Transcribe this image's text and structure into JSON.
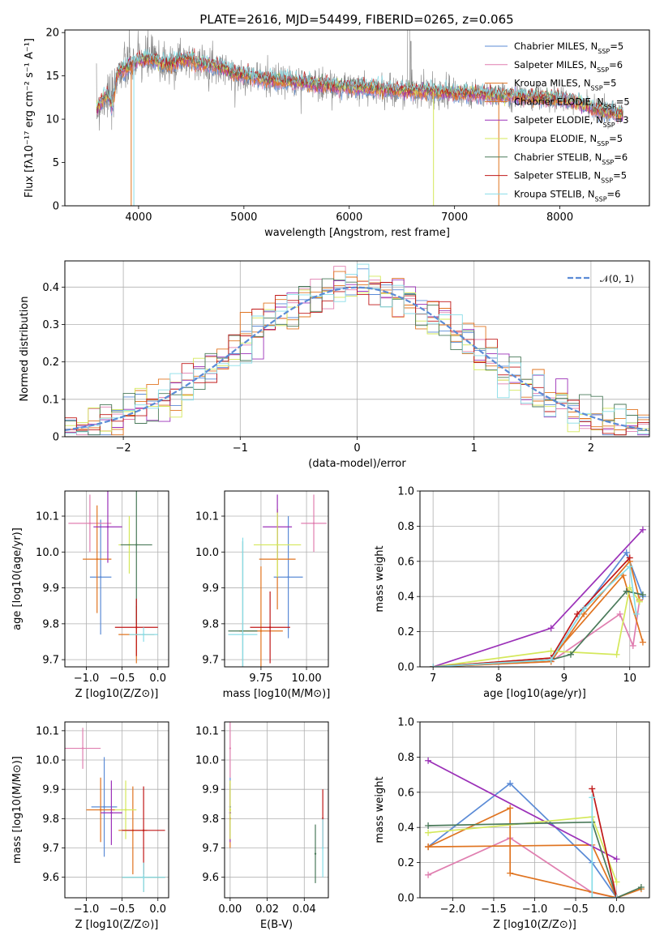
{
  "title": "PLATE=2616, MJD=54499, FIBERID=0265, z=0.065",
  "colors": {
    "chabrier_miles": "#5b8bd6",
    "salpeter_miles": "#e07fb0",
    "kroupa_miles": "#e07420",
    "chabrier_elodie": "#e07420",
    "salpeter_elodie": "#9b30b8",
    "kroupa_elodie": "#d4e85a",
    "chabrier_stelib": "#4a7a5a",
    "salpeter_stelib": "#c01818",
    "kroupa_stelib": "#88dde8",
    "data": "#808080",
    "gauss": "#5b8bd6",
    "grid": "#b0b0b0"
  },
  "chart_data": [
    {
      "id": "spectrum",
      "type": "line",
      "xlabel": "wavelength [Angstrom, rest frame]",
      "ylabel": "Flux [fλ10⁻¹⁷ erg cm⁻² s⁻¹ A⁻¹]",
      "xlim": [
        3300,
        8850
      ],
      "ylim": [
        0,
        20.3
      ],
      "xticks": [
        4000,
        5000,
        6000,
        7000,
        8000
      ],
      "yticks": [
        0,
        5,
        10,
        15,
        20
      ],
      "legend": [
        "Chabrier MILES, N_SSP=5",
        "Salpeter MILES, N_SSP=6",
        "Kroupa MILES, N_SSP=5",
        "Chabrier ELODIE, N_SSP=5",
        "Salpeter ELODIE, N_SSP=3",
        "Kroupa ELODIE, N_SSP=5",
        "Chabrier STELIB, N_SSP=6",
        "Salpeter STELIB, N_SSP=5",
        "Kroupa STELIB, N_SSP=6"
      ],
      "continuum": {
        "x": [
          3600,
          3650,
          3700,
          3750,
          3800,
          3900,
          4000,
          4100,
          4200,
          4300,
          4400,
          4500,
          4600,
          4700,
          4800,
          4900,
          5000,
          5200,
          5400,
          5600,
          5800,
          6000,
          6200,
          6400,
          6600,
          6800,
          7000,
          7200,
          7400,
          7600,
          7800,
          8000,
          8200,
          8400,
          8600
        ],
        "y": [
          11.0,
          12.0,
          13.0,
          11.5,
          15.5,
          16.0,
          16.8,
          17.0,
          16.6,
          16.3,
          16.9,
          16.9,
          16.4,
          16.3,
          16.0,
          15.2,
          15.1,
          14.6,
          14.4,
          14.2,
          13.9,
          13.7,
          13.6,
          13.3,
          13.3,
          13.2,
          13.0,
          12.9,
          12.8,
          12.6,
          12.5,
          12.3,
          11.8,
          10.9,
          10.5
        ]
      }
    },
    {
      "id": "residuals",
      "type": "histogram",
      "xlabel": "(data-model)/error",
      "ylabel": "Normed distribution",
      "xlim": [
        -2.5,
        2.5
      ],
      "ylim": [
        0,
        0.47
      ],
      "xticks": [
        -2,
        -1,
        0,
        1,
        2
      ],
      "yticks": [
        0.0,
        0.1,
        0.2,
        0.3,
        0.4
      ],
      "legend": [
        "𝒩(0, 1)"
      ]
    },
    {
      "id": "age-vs-Z",
      "type": "scatter",
      "xlabel": "Z [log10(Z/Z⊙)]",
      "ylabel": "age  [log10(age/yr)]",
      "xlim": [
        -1.3,
        0.15
      ],
      "ylim": [
        9.68,
        10.17
      ],
      "xticks": [
        -1.0,
        -0.5,
        0.0
      ],
      "yticks": [
        9.7,
        9.8,
        9.9,
        10.0,
        10.1
      ],
      "points": [
        {
          "x": -0.8,
          "y": 9.93,
          "xerr": 0.15,
          "yerr": 0.16
        },
        {
          "x": -0.95,
          "y": 10.08,
          "xerr": 0.3,
          "yerr": 0.08
        },
        {
          "x": -0.85,
          "y": 9.98,
          "xerr": 0.2,
          "yerr": 0.15
        },
        {
          "x": -0.3,
          "y": 9.77,
          "xerr": 0.25,
          "yerr": 0.08
        },
        {
          "x": -0.7,
          "y": 10.07,
          "xerr": 0.2,
          "yerr": 0.1
        },
        {
          "x": -0.4,
          "y": 10.02,
          "xerr": 0.15,
          "yerr": 0.08
        },
        {
          "x": -0.3,
          "y": 10.02,
          "xerr": 0.22,
          "yerr": 0.22
        },
        {
          "x": -0.3,
          "y": 9.79,
          "xerr": 0.3,
          "yerr": 0.08
        },
        {
          "x": -0.2,
          "y": 9.77,
          "xerr": 0.2,
          "yerr": 0.02
        }
      ]
    },
    {
      "id": "age-vs-mass",
      "type": "scatter",
      "xlabel": "mass [log10(M/M⊙)]",
      "ylabel": "",
      "xlim": [
        9.55,
        10.12
      ],
      "ylim": [
        9.68,
        10.17
      ],
      "xticks": [
        9.75,
        10.0
      ],
      "yticks": [
        9.7,
        9.8,
        9.9,
        10.0,
        10.1
      ],
      "points": [
        {
          "x": 9.9,
          "y": 9.93,
          "xerr": 0.08,
          "yerr": 0.17
        },
        {
          "x": 10.04,
          "y": 10.08,
          "xerr": 0.07,
          "yerr": 0.08
        },
        {
          "x": 9.84,
          "y": 9.98,
          "xerr": 0.1,
          "yerr": 0.14
        },
        {
          "x": 9.75,
          "y": 9.78,
          "xerr": 0.12,
          "yerr": 0.18
        },
        {
          "x": 9.84,
          "y": 10.07,
          "xerr": 0.08,
          "yerr": 0.09
        },
        {
          "x": 9.84,
          "y": 10.02,
          "xerr": 0.13,
          "yerr": 0.09
        },
        {
          "x": 9.65,
          "y": 9.78,
          "xerr": 0.08,
          "yerr": 0.25
        },
        {
          "x": 9.8,
          "y": 9.79,
          "xerr": 0.11,
          "yerr": 0.1
        },
        {
          "x": 9.65,
          "y": 9.77,
          "xerr": 0.08,
          "yerr": 0.27
        }
      ]
    },
    {
      "id": "mass-weight-vs-age",
      "type": "line",
      "xlabel": "age  [log10(age/yr)]",
      "ylabel": "mass weight",
      "xlim": [
        6.8,
        10.3
      ],
      "ylim": [
        0,
        1
      ],
      "xticks": [
        7,
        8,
        9,
        10
      ],
      "yticks": [
        0.0,
        0.2,
        0.4,
        0.6,
        0.8,
        1.0
      ],
      "series": [
        {
          "x": [
            7.0,
            8.8,
            9.3,
            9.95,
            10.2
          ],
          "y": [
            0.0,
            0.04,
            0.33,
            0.65,
            0.4
          ]
        },
        {
          "x": [
            7.0,
            8.8,
            9.85,
            10.05,
            10.15
          ],
          "y": [
            0.0,
            0.03,
            0.3,
            0.12,
            0.38
          ]
        },
        {
          "x": [
            7.0,
            8.8,
            9.9,
            10.2
          ],
          "y": [
            0.0,
            0.05,
            0.52,
            0.14
          ]
        },
        {
          "x": [
            7.0,
            8.8,
            9.3,
            10.0,
            10.15
          ],
          "y": [
            0.0,
            0.03,
            0.3,
            0.6,
            0.38
          ]
        },
        {
          "x": [
            7.0,
            8.8,
            10.2
          ],
          "y": [
            0.0,
            0.22,
            0.78
          ]
        },
        {
          "x": [
            7.0,
            8.8,
            9.8,
            10.0,
            10.15
          ],
          "y": [
            0.0,
            0.09,
            0.07,
            0.45,
            0.37
          ]
        },
        {
          "x": [
            7.0,
            8.8,
            9.1,
            9.95,
            10.2
          ],
          "y": [
            0.0,
            0.04,
            0.07,
            0.43,
            0.41
          ]
        },
        {
          "x": [
            7.0,
            8.8,
            9.2,
            10.0
          ],
          "y": [
            0.0,
            0.05,
            0.3,
            0.62
          ]
        },
        {
          "x": [
            7.0,
            8.8,
            9.3,
            10.0,
            10.1
          ],
          "y": [
            0.0,
            0.04,
            0.33,
            0.57,
            0.3
          ]
        }
      ]
    },
    {
      "id": "mass-vs-Z",
      "type": "scatter",
      "xlabel": "Z [log10(Z/Z⊙)]",
      "ylabel": "mass [log10(M/M⊙)]",
      "xlim": [
        -1.3,
        0.15
      ],
      "ylim": [
        9.53,
        10.13
      ],
      "xticks": [
        -1.0,
        -0.5,
        0.0
      ],
      "yticks": [
        9.6,
        9.7,
        9.8,
        9.9,
        10.0,
        10.1
      ],
      "points": [
        {
          "x": -0.75,
          "y": 9.84,
          "xerr": 0.18,
          "yerr": 0.17
        },
        {
          "x": -1.05,
          "y": 10.04,
          "xerr": 0.25,
          "yerr": 0.07
        },
        {
          "x": -0.8,
          "y": 9.83,
          "xerr": 0.2,
          "yerr": 0.11
        },
        {
          "x": -0.35,
          "y": 9.76,
          "xerr": 0.2,
          "yerr": 0.15
        },
        {
          "x": -0.65,
          "y": 9.82,
          "xerr": 0.15,
          "yerr": 0.11
        },
        {
          "x": -0.45,
          "y": 9.83,
          "xerr": 0.15,
          "yerr": 0.1
        },
        {
          "x": -0.2,
          "y": 9.6,
          "xerr": 0.3,
          "yerr": 0.05
        },
        {
          "x": -0.2,
          "y": 9.76,
          "xerr": 0.3,
          "yerr": 0.15
        },
        {
          "x": -0.2,
          "y": 9.6,
          "xerr": 0.3,
          "yerr": 0.05
        }
      ]
    },
    {
      "id": "mass-vs-EBV",
      "type": "scatter",
      "xlabel": "E(B-V)",
      "ylabel": "",
      "xlim": [
        -0.003,
        0.053
      ],
      "ylim": [
        9.53,
        10.13
      ],
      "xticks": [
        0.0,
        0.02,
        0.04
      ],
      "yticks": [
        9.6,
        9.7,
        9.8,
        9.9,
        10.0,
        10.1
      ],
      "points": [
        {
          "x": 0.0,
          "y": 9.84
        },
        {
          "x": 0.0,
          "y": 10.04
        },
        {
          "x": 0.0,
          "y": 9.83
        },
        {
          "x": 0.0,
          "y": 9.8
        },
        {
          "x": 0.0,
          "y": 9.82
        },
        {
          "x": 0.0,
          "y": 9.83
        },
        {
          "x": 0.046,
          "y": 9.68
        },
        {
          "x": 0.05,
          "y": 9.8
        },
        {
          "x": 0.05,
          "y": 9.7
        }
      ]
    },
    {
      "id": "mass-weight-vs-Z",
      "type": "line",
      "xlabel": "Z [log10(Z/Z⊙)]",
      "ylabel": "mass weight",
      "xlim": [
        -2.4,
        0.4
      ],
      "ylim": [
        0,
        1
      ],
      "xticks": [
        -2.0,
        -1.5,
        -1.0,
        -0.5,
        0.0
      ],
      "yticks": [
        0.0,
        0.2,
        0.4,
        0.6,
        0.8,
        1.0
      ],
      "series": [
        {
          "x": [
            -2.3,
            -1.3,
            -0.3,
            0.0
          ],
          "y": [
            0.29,
            0.65,
            0.2,
            0.0
          ]
        },
        {
          "x": [
            -2.3,
            -1.3,
            -0.3,
            0.0
          ],
          "y": [
            0.13,
            0.34,
            0.03,
            0.0
          ]
        },
        {
          "x": [
            -2.3,
            -1.3,
            -1.3,
            0.0,
            0.3
          ],
          "y": [
            0.29,
            0.51,
            0.14,
            0.0,
            0.05
          ]
        },
        {
          "x": [
            -2.3,
            -0.3,
            0.0
          ],
          "y": [
            0.29,
            0.3,
            0.0
          ]
        },
        {
          "x": [
            -2.3,
            0.0
          ],
          "y": [
            0.78,
            0.22
          ]
        },
        {
          "x": [
            -2.3,
            -0.3,
            0.0
          ],
          "y": [
            0.37,
            0.46,
            0.09
          ]
        },
        {
          "x": [
            -2.3,
            -0.3,
            0.0,
            0.3
          ],
          "y": [
            0.41,
            0.43,
            0.0,
            0.06
          ]
        },
        {
          "x": [
            -0.3,
            0.0
          ],
          "y": [
            0.62,
            0.0
          ]
        },
        {
          "x": [
            -0.3,
            -0.3,
            0.0
          ],
          "y": [
            0.57,
            0.0,
            0.0
          ]
        }
      ]
    }
  ]
}
